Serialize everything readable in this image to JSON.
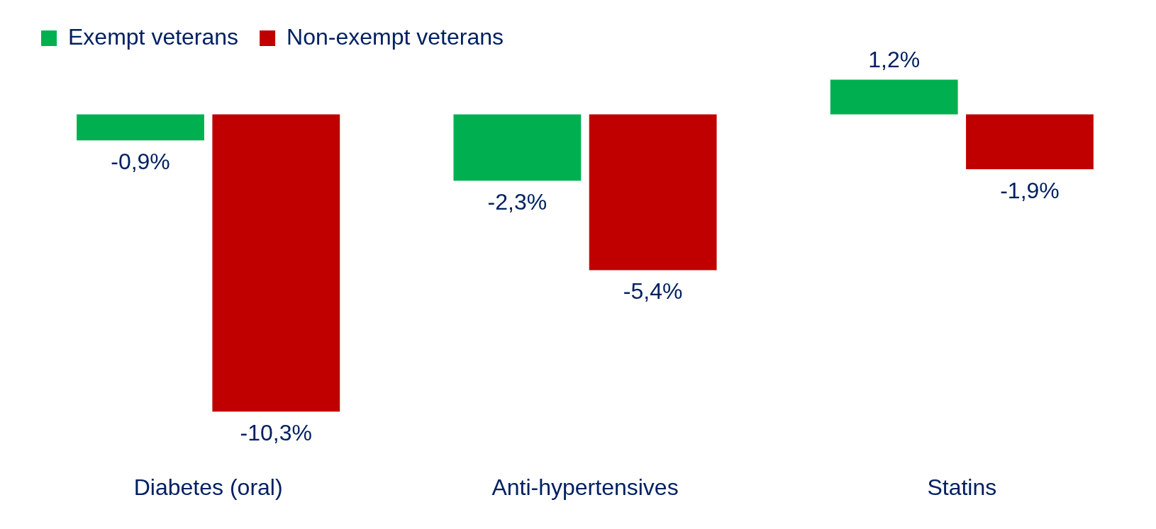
{
  "chart_data": {
    "type": "bar",
    "categories": [
      "Diabetes (oral)",
      "Anti-hypertensives",
      "Statins"
    ],
    "series": [
      {
        "name": "Exempt veterans",
        "color": "#00b050",
        "values": [
          -0.9,
          -2.3,
          1.2
        ],
        "value_labels": [
          "-0,9%",
          "-2,3%",
          "1,2%"
        ]
      },
      {
        "name": "Non-exempt veterans",
        "color": "#c00000",
        "values": [
          -10.3,
          -5.4,
          -1.9
        ],
        "value_labels": [
          "-10,3%",
          "-5,4%",
          "-1,9%"
        ]
      }
    ],
    "legend": "top left",
    "grid": false
  }
}
